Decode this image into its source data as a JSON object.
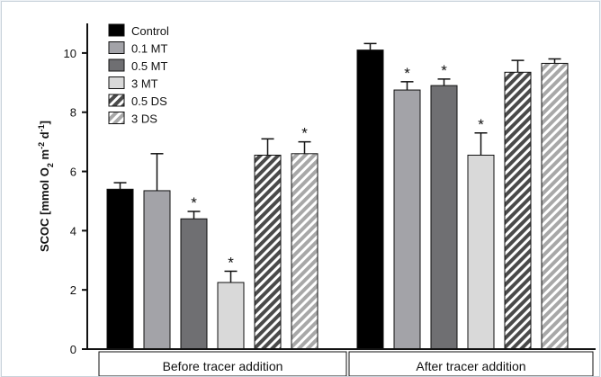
{
  "chart_data": {
    "type": "bar",
    "ylabel_main": "SCOC [mmol O",
    "ylabel_sub1": "2",
    "ylabel_mid1": " m",
    "ylabel_sup1": "-2",
    "ylabel_mid2": " d",
    "ylabel_sup2": "-1",
    "ylabel_end": "]",
    "ylim": [
      0,
      11
    ],
    "yticks": [
      "0",
      "2",
      "4",
      "6",
      "8",
      "10"
    ],
    "categories": [
      "Before tracer addition",
      "After tracer addition"
    ],
    "series": [
      {
        "name": "Control",
        "values": [
          5.4,
          10.1
        ],
        "errors": [
          0.22,
          0.22
        ],
        "significant": [
          false,
          false
        ],
        "fill": "#000000",
        "hatch": false
      },
      {
        "name": "0.1 MT",
        "values": [
          5.35,
          8.75
        ],
        "errors": [
          1.25,
          0.28
        ],
        "significant": [
          false,
          true
        ],
        "fill": "#a3a3a8",
        "hatch": false
      },
      {
        "name": "0.5 MT",
        "values": [
          4.4,
          8.9
        ],
        "errors": [
          0.25,
          0.22
        ],
        "significant": [
          true,
          true
        ],
        "fill": "#6f6f72",
        "hatch": false
      },
      {
        "name": "3 MT",
        "values": [
          2.25,
          6.55
        ],
        "errors": [
          0.38,
          0.75
        ],
        "significant": [
          true,
          true
        ],
        "fill": "#d9d9d9",
        "hatch": false
      },
      {
        "name": "0.5 DS",
        "values": [
          6.55,
          9.35
        ],
        "errors": [
          0.55,
          0.4
        ],
        "significant": [
          false,
          false
        ],
        "fill": "#5a5a5a",
        "hatch": true
      },
      {
        "name": "3 DS",
        "values": [
          6.6,
          9.65
        ],
        "errors": [
          0.4,
          0.15
        ],
        "significant": [
          true,
          false
        ],
        "fill": "#a3a3a3",
        "hatch": true
      }
    ],
    "significance_marker": "*",
    "legend_position": "top-left",
    "grid": false
  }
}
